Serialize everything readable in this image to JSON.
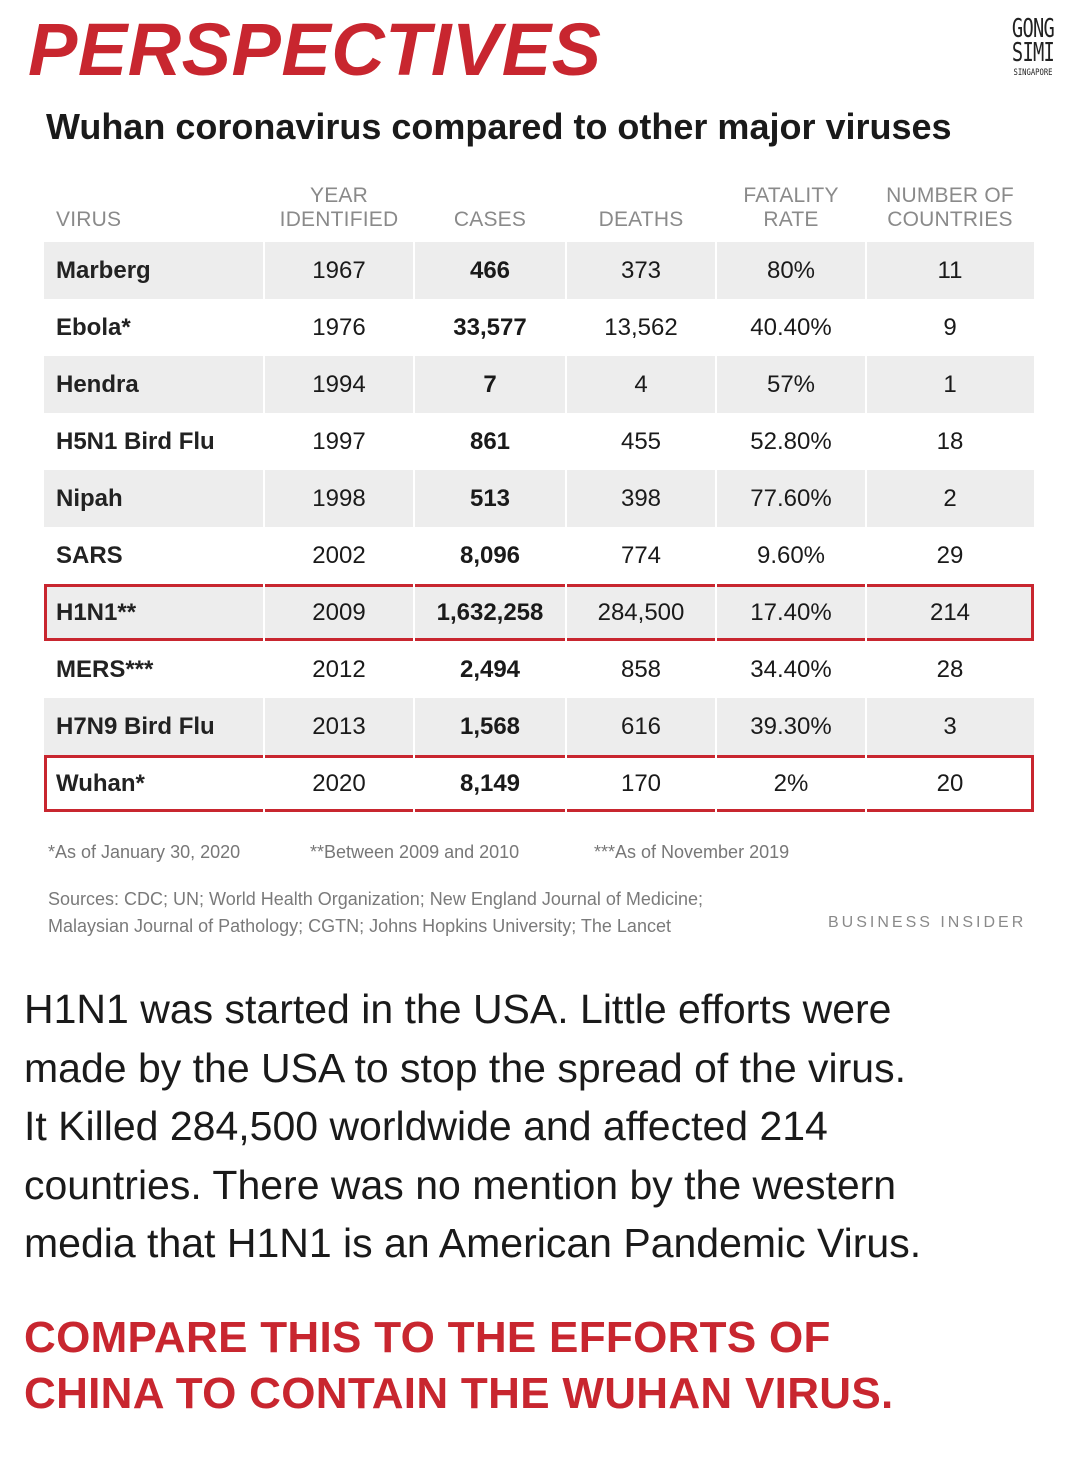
{
  "headline": "PERSPECTIVES",
  "logo": {
    "line1": "GONG",
    "line2": "SIMI",
    "line3": "SINGAPORE"
  },
  "chart_data": {
    "type": "table",
    "title": "Wuhan coronavirus compared to other major viruses",
    "columns": [
      "VIRUS",
      "YEAR IDENTIFIED",
      "CASES",
      "DEATHS",
      "FATALITY RATE",
      "NUMBER OF COUNTRIES"
    ],
    "header_lines": [
      [
        "",
        "VIRUS"
      ],
      [
        "YEAR",
        "IDENTIFIED"
      ],
      [
        "",
        "CASES"
      ],
      [
        "",
        "DEATHS"
      ],
      [
        "FATALITY",
        "RATE"
      ],
      [
        "NUMBER OF",
        "COUNTRIES"
      ]
    ],
    "rows": [
      [
        "Marberg",
        "1967",
        "466",
        "373",
        "80%",
        "11"
      ],
      [
        "Ebola*",
        "1976",
        "33,577",
        "13,562",
        "40.40%",
        "9"
      ],
      [
        "Hendra",
        "1994",
        "7",
        "4",
        "57%",
        "1"
      ],
      [
        "H5N1 Bird Flu",
        "1997",
        "861",
        "455",
        "52.80%",
        "18"
      ],
      [
        "Nipah",
        "1998",
        "513",
        "398",
        "77.60%",
        "2"
      ],
      [
        "SARS",
        "2002",
        "8,096",
        "774",
        "9.60%",
        "29"
      ],
      [
        "H1N1**",
        "2009",
        "1,632,258",
        "284,500",
        "17.40%",
        "214"
      ],
      [
        "MERS***",
        "2012",
        "2,494",
        "858",
        "34.40%",
        "28"
      ],
      [
        "H7N9 Bird Flu",
        "2013",
        "1,568",
        "616",
        "39.30%",
        "3"
      ],
      [
        "Wuhan*",
        "2020",
        "8,149",
        "170",
        "2%",
        "20"
      ]
    ],
    "highlighted_rows": [
      "H1N1**",
      "Wuhan*"
    ],
    "highlight_color": "#c8262f"
  },
  "footnotes": [
    "*As of January 30, 2020",
    "**Between 2009 and 2010",
    "***As of November 2019"
  ],
  "sources": [
    "Sources: CDC; UN; World Health Organization; New England Journal of Medicine;",
    "Malaysian Journal of Pathology; CGTN; Johns Hopkins University; The Lancet"
  ],
  "brand": "BUSINESS INSIDER",
  "body_lines": [
    "H1N1 was started in the USA. Little efforts were",
    "made by the USA to stop the spread of the virus.",
    "It Killed 284,500 worldwide and affected 214",
    "countries. There was no mention by the western",
    "media that H1N1 is an American Pandemic Virus."
  ],
  "cta_lines": [
    "COMPARE THIS TO THE EFFORTS OF",
    "CHINA TO CONTAIN THE WUHAN VIRUS."
  ],
  "colors": {
    "accent": "#c8262f",
    "row_shade": "#ededed"
  }
}
